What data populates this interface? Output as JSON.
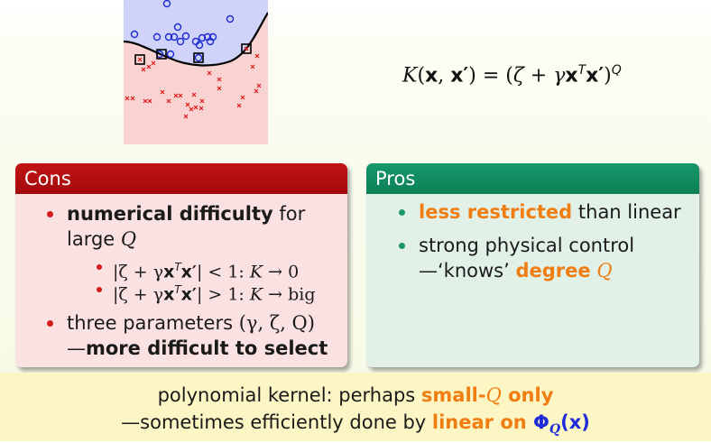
{
  "formula": {
    "lhs_k": "K",
    "lhs_args_open": "(",
    "x": "x",
    "comma": ", ",
    "xprime": "x′",
    "close": ")",
    "equals": " = ",
    "rhs_open": "(",
    "zeta": "ζ",
    "plus": " + ",
    "gamma": "γ",
    "T": "T",
    "rhs_close": ")",
    "Q": "Q"
  },
  "cons": {
    "title": "Cons",
    "item1_bold": "numerical difficulty",
    "item1_rest": " for",
    "item1_line2": "large ",
    "item1_q": "Q",
    "sub1_math": "|ζ + γ",
    "sub1_x": "x",
    "sub1_t": "T",
    "sub1_xp": "x′",
    "sub1_rest": "| < 1: ",
    "sub1_k": "K",
    "sub1_end": " → 0",
    "sub2_math": "|ζ + γ",
    "sub2_x": "x",
    "sub2_t": "T",
    "sub2_xp": "x′",
    "sub2_rest": "| > 1: ",
    "sub2_k": "K",
    "sub2_end": " → big",
    "item2_text": "three parameters ",
    "item2_math": "(γ, ζ, Q)",
    "item2_dash": "—",
    "item2_bold": "more difficult to select"
  },
  "pros": {
    "title": "Pros",
    "item1_highlight": "less restricted",
    "item1_rest": " than linear",
    "item2_line1": "strong physical control",
    "item2_line2": "—‘knows’ ",
    "item2_highlight": "degree",
    "item2_q": "Q"
  },
  "footer": {
    "line1_text": "polynomial kernel: perhaps ",
    "line1_highlight": "small-",
    "line1_q": "Q",
    "line1_only": " only",
    "line2_text": "—sometimes efficiently done by ",
    "line2_highlight": "linear on ",
    "line2_phi": "Φ",
    "line2_sub": "Q",
    "line2_arg": "(x)"
  },
  "colors": {
    "cons_accent": "#c21414",
    "pros_accent": "#0c7f55",
    "highlight": "#f07d11",
    "phi_blue": "#1f2bd8",
    "footer_bg": "#fbf6c4"
  }
}
